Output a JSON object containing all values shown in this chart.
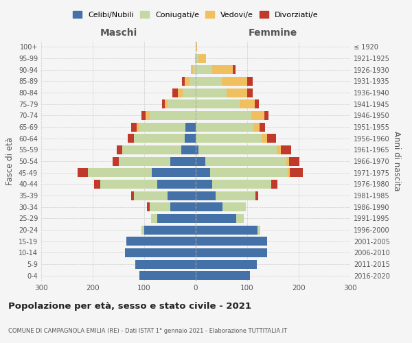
{
  "age_groups": [
    "0-4",
    "5-9",
    "10-14",
    "15-19",
    "20-24",
    "25-29",
    "30-34",
    "35-39",
    "40-44",
    "45-49",
    "50-54",
    "55-59",
    "60-64",
    "65-69",
    "70-74",
    "75-79",
    "80-84",
    "85-89",
    "90-94",
    "95-99",
    "100+"
  ],
  "birth_years": [
    "2016-2020",
    "2011-2015",
    "2006-2010",
    "2001-2005",
    "1996-2000",
    "1991-1995",
    "1986-1990",
    "1981-1985",
    "1976-1980",
    "1971-1975",
    "1966-1970",
    "1961-1965",
    "1956-1960",
    "1951-1955",
    "1946-1950",
    "1941-1945",
    "1936-1940",
    "1931-1935",
    "1926-1930",
    "1921-1925",
    "≤ 1920"
  ],
  "maschi": {
    "celibi": [
      110,
      118,
      138,
      135,
      100,
      75,
      50,
      55,
      75,
      85,
      50,
      28,
      22,
      20,
      0,
      0,
      0,
      0,
      0,
      0,
      0
    ],
    "coniugati": [
      0,
      0,
      0,
      0,
      5,
      12,
      40,
      65,
      110,
      125,
      100,
      115,
      98,
      90,
      90,
      55,
      25,
      12,
      5,
      2,
      0
    ],
    "vedovi": [
      0,
      0,
      0,
      0,
      0,
      0,
      0,
      0,
      0,
      0,
      0,
      0,
      0,
      5,
      8,
      5,
      10,
      10,
      5,
      0,
      0
    ],
    "divorziati": [
      0,
      0,
      0,
      0,
      0,
      0,
      5,
      5,
      12,
      20,
      12,
      10,
      12,
      10,
      8,
      5,
      10,
      5,
      0,
      0,
      0
    ]
  },
  "femmine": {
    "nubili": [
      105,
      118,
      138,
      138,
      120,
      78,
      52,
      38,
      32,
      28,
      18,
      5,
      0,
      0,
      0,
      0,
      0,
      0,
      0,
      0,
      0
    ],
    "coniugate": [
      0,
      0,
      0,
      0,
      5,
      15,
      45,
      78,
      115,
      150,
      158,
      152,
      128,
      112,
      108,
      85,
      60,
      50,
      32,
      5,
      0
    ],
    "vedove": [
      0,
      0,
      0,
      0,
      0,
      0,
      0,
      0,
      0,
      5,
      5,
      8,
      10,
      12,
      25,
      30,
      40,
      50,
      40,
      15,
      2
    ],
    "divorziate": [
      0,
      0,
      0,
      0,
      0,
      0,
      0,
      5,
      12,
      25,
      20,
      20,
      18,
      10,
      8,
      8,
      10,
      10,
      5,
      0,
      0
    ]
  },
  "colors": {
    "celibi": "#4472A8",
    "coniugati": "#C5D8A4",
    "vedovi": "#F0C060",
    "divorziati": "#C0392B"
  },
  "xlim": 300,
  "title": "Popolazione per età, sesso e stato civile - 2021",
  "subtitle": "COMUNE DI CAMPAGNOLA EMILIA (RE) - Dati ISTAT 1° gennaio 2021 - Elaborazione TUTTITALIA.IT",
  "ylabel_left": "Fasce di età",
  "ylabel_right": "Anni di nascita",
  "xlabel_left": "Maschi",
  "xlabel_right": "Femmine",
  "background_color": "#f5f5f5",
  "grid_color": "#cccccc"
}
